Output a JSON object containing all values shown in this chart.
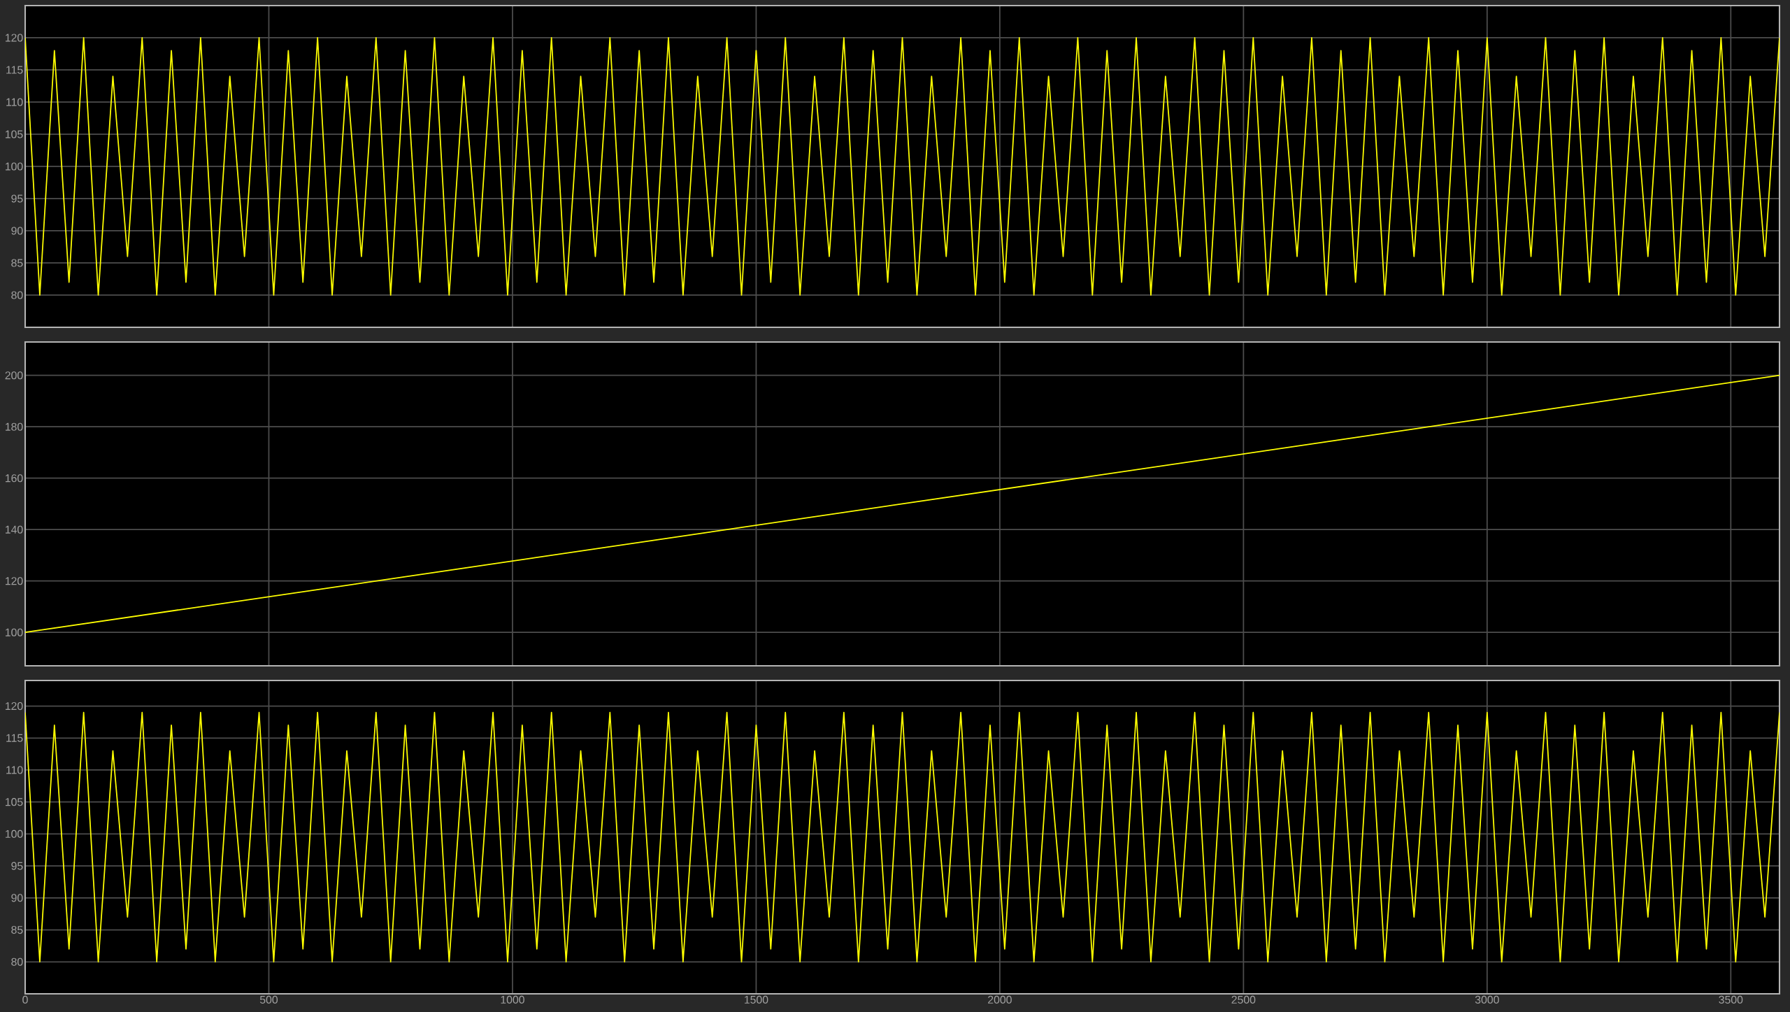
{
  "chart_data": [
    {
      "type": "line",
      "x": [
        0,
        30,
        60,
        90,
        120,
        150,
        180,
        210,
        240,
        270,
        300,
        330,
        360,
        390,
        420,
        450,
        480,
        510,
        540,
        570,
        600,
        630,
        660,
        690,
        720,
        750,
        780,
        810,
        840,
        870,
        900,
        930,
        960,
        990,
        1020,
        1050,
        1080,
        1110,
        1140,
        1170,
        1200,
        1230,
        1260,
        1290,
        1320,
        1350,
        1380,
        1410,
        1440,
        1470,
        1500,
        1530,
        1560,
        1590,
        1620,
        1650,
        1680,
        1710,
        1740,
        1770,
        1800,
        1830,
        1860,
        1890,
        1920,
        1950,
        1980,
        2010,
        2040,
        2070,
        2100,
        2130,
        2160,
        2190,
        2220,
        2250,
        2280,
        2310,
        2340,
        2370,
        2400,
        2430,
        2460,
        2490,
        2520,
        2550,
        2580,
        2610,
        2640,
        2670,
        2700,
        2730,
        2760,
        2790,
        2820,
        2850,
        2880,
        2910,
        2940,
        2970,
        3000,
        3030,
        3060,
        3090,
        3120,
        3150,
        3180,
        3210,
        3240,
        3270,
        3300,
        3330,
        3360,
        3390,
        3420,
        3450,
        3480,
        3510,
        3540,
        3570,
        3600
      ],
      "series": [
        {
          "color": "#ffff00",
          "values": [
            120,
            80,
            118,
            82,
            120,
            80,
            114,
            86,
            120,
            80,
            118,
            82,
            120,
            80,
            114,
            86,
            120,
            80,
            118,
            82,
            120,
            80,
            114,
            86,
            120,
            80,
            118,
            82,
            120,
            80,
            114,
            86,
            120,
            80,
            118,
            82,
            120,
            80,
            114,
            86,
            120,
            80,
            118,
            82,
            120,
            80,
            114,
            86,
            120,
            80,
            118,
            82,
            120,
            80,
            114,
            86,
            120,
            80,
            118,
            82,
            120,
            80,
            114,
            86,
            120,
            80,
            118,
            82,
            120,
            80,
            114,
            86,
            120,
            80,
            118,
            82,
            120,
            80,
            114,
            86,
            120,
            80,
            118,
            82,
            120,
            80,
            114,
            86,
            120,
            80,
            118,
            82,
            120,
            80,
            114,
            86,
            120,
            80,
            118,
            82,
            120,
            80,
            114,
            86,
            120,
            80,
            118,
            82,
            120,
            80,
            114,
            86,
            120,
            80,
            118,
            82,
            120,
            80,
            114,
            86,
            120
          ]
        }
      ],
      "xlim": [
        0,
        3600
      ],
      "xticks": [
        0,
        500,
        1000,
        1500,
        2000,
        2500,
        3000,
        3500
      ],
      "ylim": [
        75,
        125
      ],
      "yticks": [
        80,
        85,
        90,
        95,
        100,
        105,
        110,
        115,
        120
      ],
      "grid": true,
      "tick_labels": "y"
    },
    {
      "type": "line",
      "series": [
        {
          "color": "#ffff00",
          "x": [
            0,
            900,
            1800,
            2700,
            3600
          ],
          "values": [
            100,
            125,
            150,
            175,
            200
          ]
        }
      ],
      "xlim": [
        0,
        3600
      ],
      "xticks": [
        0,
        500,
        1000,
        1500,
        2000,
        2500,
        3000,
        3500
      ],
      "ylim": [
        87,
        213
      ],
      "yticks": [
        100,
        120,
        140,
        160,
        180,
        200
      ],
      "grid": true,
      "tick_labels": "y"
    },
    {
      "type": "line",
      "x": [
        0,
        30,
        60,
        90,
        120,
        150,
        180,
        210,
        240,
        270,
        300,
        330,
        360,
        390,
        420,
        450,
        480,
        510,
        540,
        570,
        600,
        630,
        660,
        690,
        720,
        750,
        780,
        810,
        840,
        870,
        900,
        930,
        960,
        990,
        1020,
        1050,
        1080,
        1110,
        1140,
        1170,
        1200,
        1230,
        1260,
        1290,
        1320,
        1350,
        1380,
        1410,
        1440,
        1470,
        1500,
        1530,
        1560,
        1590,
        1620,
        1650,
        1680,
        1710,
        1740,
        1770,
        1800,
        1830,
        1860,
        1890,
        1920,
        1950,
        1980,
        2010,
        2040,
        2070,
        2100,
        2130,
        2160,
        2190,
        2220,
        2250,
        2280,
        2310,
        2340,
        2370,
        2400,
        2430,
        2460,
        2490,
        2520,
        2550,
        2580,
        2610,
        2640,
        2670,
        2700,
        2730,
        2760,
        2790,
        2820,
        2850,
        2880,
        2910,
        2940,
        2970,
        3000,
        3030,
        3060,
        3090,
        3120,
        3150,
        3180,
        3210,
        3240,
        3270,
        3300,
        3330,
        3360,
        3390,
        3420,
        3450,
        3480,
        3510,
        3540,
        3570,
        3600
      ],
      "series": [
        {
          "color": "#ffff00",
          "values": [
            119,
            80,
            117,
            82,
            119,
            80,
            113,
            87,
            119,
            80,
            117,
            82,
            119,
            80,
            113,
            87,
            119,
            80,
            117,
            82,
            119,
            80,
            113,
            87,
            119,
            80,
            117,
            82,
            119,
            80,
            113,
            87,
            119,
            80,
            117,
            82,
            119,
            80,
            113,
            87,
            119,
            80,
            117,
            82,
            119,
            80,
            113,
            87,
            119,
            80,
            117,
            82,
            119,
            80,
            113,
            87,
            119,
            80,
            117,
            82,
            119,
            80,
            113,
            87,
            119,
            80,
            117,
            82,
            119,
            80,
            113,
            87,
            119,
            80,
            117,
            82,
            119,
            80,
            113,
            87,
            119,
            80,
            117,
            82,
            119,
            80,
            113,
            87,
            119,
            80,
            117,
            82,
            119,
            80,
            113,
            87,
            119,
            80,
            117,
            82,
            119,
            80,
            113,
            87,
            119,
            80,
            117,
            82,
            119,
            80,
            113,
            87,
            119,
            80,
            117,
            82,
            119,
            80,
            113,
            87,
            119
          ]
        }
      ],
      "xlim": [
        0,
        3600
      ],
      "xticks": [
        0,
        500,
        1000,
        1500,
        2000,
        2500,
        3000,
        3500
      ],
      "ylim": [
        75,
        124
      ],
      "yticks": [
        80,
        85,
        90,
        95,
        100,
        105,
        110,
        115,
        120
      ],
      "grid": true
    }
  ]
}
